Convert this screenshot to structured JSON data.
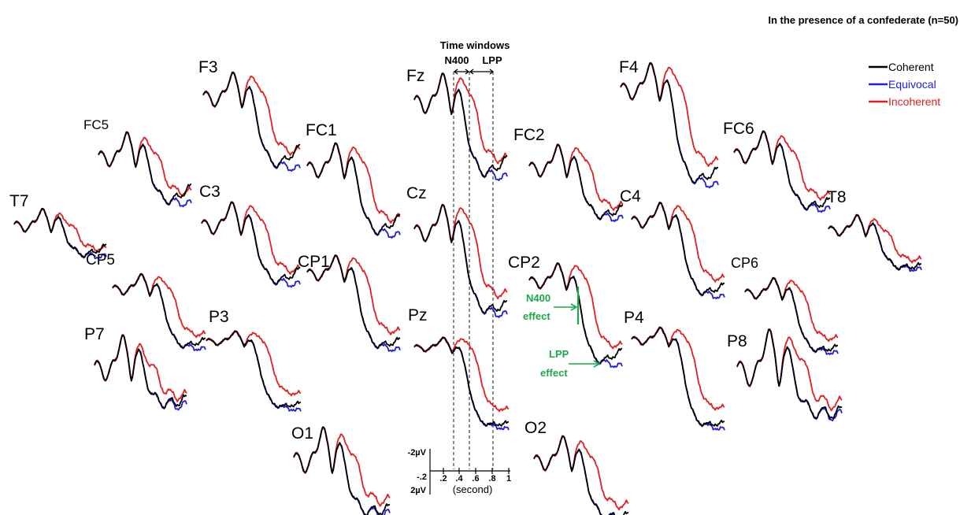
{
  "chart_data": {
    "type": "line",
    "title": "In the presence of a confederate (n=50)",
    "time_windows_title": "Time windows",
    "windows": [
      {
        "label": "N400",
        "start": 0.3,
        "end": 0.5
      },
      {
        "label": "LPP",
        "start": 0.5,
        "end": 0.8
      }
    ],
    "legend_position": "top-right",
    "series": [
      {
        "name": "Coherent",
        "color": "#000000"
      },
      {
        "name": "Equivocal",
        "color": "#1f1fdc"
      },
      {
        "name": "Incoherent",
        "color": "#e02020"
      }
    ],
    "scale": {
      "x_ticks": [
        ".2",
        ".4",
        ".6",
        ".8",
        "1"
      ],
      "x_start_label": "-.2",
      "x_unit": "(second)",
      "y_top_label": "-2µV",
      "y_bottom_label": "2µV",
      "xlim": [
        -0.2,
        1.0
      ]
    },
    "annotations": [
      {
        "text": "N400 effect",
        "lines": [
          "N400",
          "effect"
        ],
        "channel": "CP2"
      },
      {
        "text": "LPP effect",
        "lines": [
          "LPP",
          "effect"
        ],
        "channel": "CP2"
      }
    ],
    "channels": [
      "F3",
      "FC5",
      "T7",
      "FC1",
      "C3",
      "CP5",
      "CP1",
      "P3",
      "P7",
      "O1",
      "Fz",
      "Cz",
      "Pz",
      "FC2",
      "CP2",
      "C4",
      "P4",
      "O2",
      "F4",
      "FC6",
      "T8",
      "CP6",
      "P8"
    ]
  }
}
